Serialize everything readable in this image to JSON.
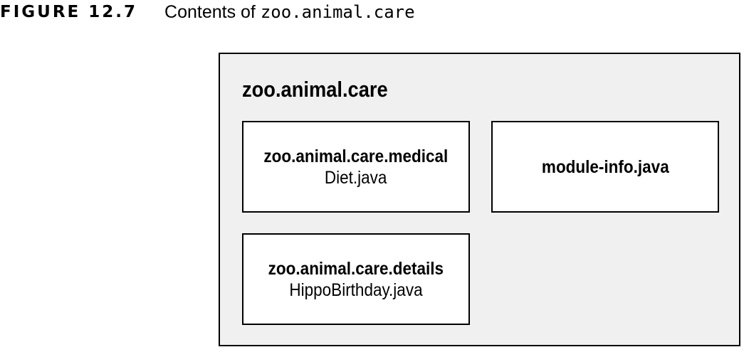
{
  "caption": {
    "label": "FIGURE 12.7",
    "text": "Contents of ",
    "code": "zoo.animal.care"
  },
  "module": {
    "name": "zoo.animal.care",
    "packages": [
      {
        "name": "zoo.animal.care.medical",
        "file": "Diet.java"
      },
      {
        "name": "zoo.animal.care.details",
        "file": "HippoBirthday.java"
      }
    ],
    "descriptor": "module-info.java"
  }
}
